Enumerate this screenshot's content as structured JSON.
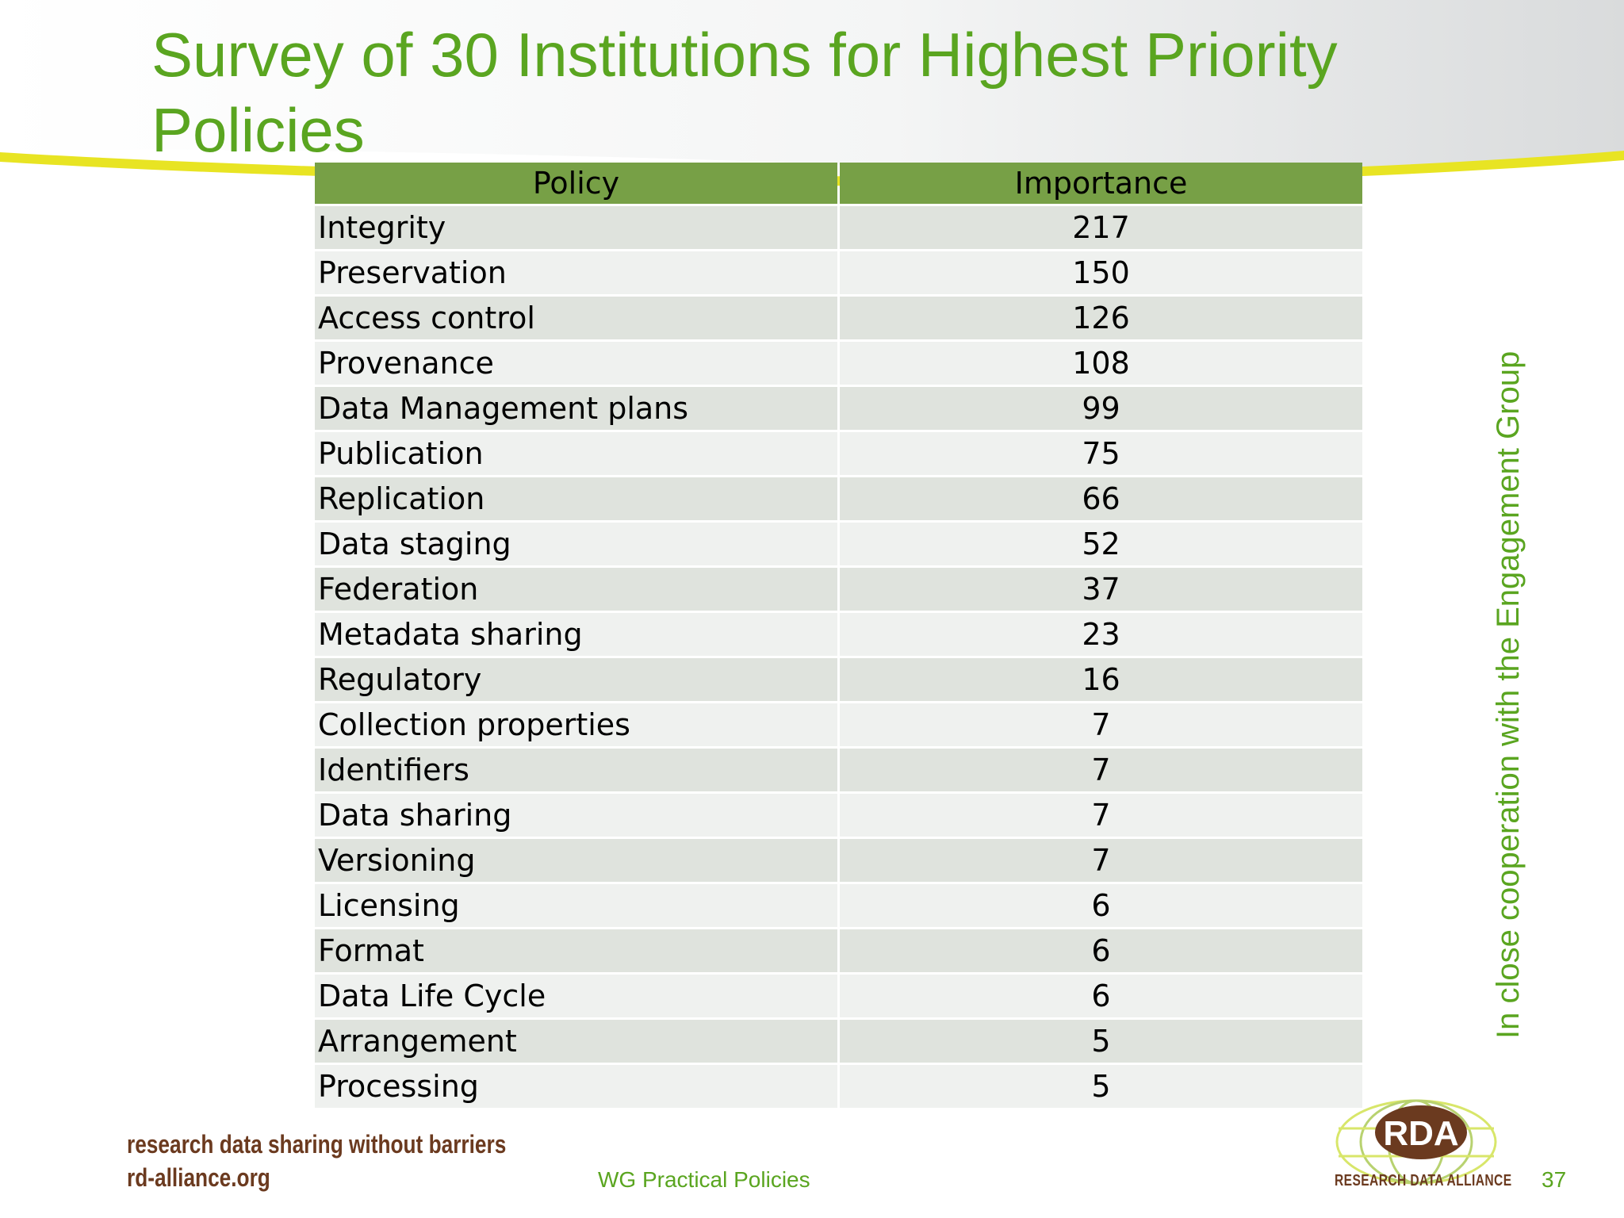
{
  "slide": {
    "title": "Survey of 30 Institutions for Highest Priority Policies",
    "side_note": "In close cooperation with the Engagement Group",
    "footer": {
      "tagline_line1": "research data sharing without barriers",
      "tagline_line2": "rd-alliance.org",
      "center_text": "WG Practical Policies",
      "page_number": "37",
      "logo_text": "RDA",
      "logo_label": "RESEARCH DATA ALLIANCE"
    },
    "colors": {
      "title_green": "#5aa520",
      "header_green": "#77a046",
      "row_dark": "#dfe3dd",
      "row_light": "#eff1ef",
      "brand_brown": "#6b3a1f",
      "swoosh_yellow": "#e8e423"
    }
  },
  "table": {
    "headers": [
      "Policy",
      "Importance"
    ],
    "rows": [
      {
        "policy": "Integrity",
        "importance": "217"
      },
      {
        "policy": "Preservation",
        "importance": "150"
      },
      {
        "policy": "Access control",
        "importance": "126"
      },
      {
        "policy": "Provenance",
        "importance": "108"
      },
      {
        "policy": "Data Management plans",
        "importance": "99"
      },
      {
        "policy": "Publication",
        "importance": "75"
      },
      {
        "policy": "Replication",
        "importance": "66"
      },
      {
        "policy": "Data staging",
        "importance": "52"
      },
      {
        "policy": "Federation",
        "importance": "37"
      },
      {
        "policy": "Metadata sharing",
        "importance": "23"
      },
      {
        "policy": "Regulatory",
        "importance": "16"
      },
      {
        "policy": "Collection properties",
        "importance": "7"
      },
      {
        "policy": "Identifiers",
        "importance": "7"
      },
      {
        "policy": "Data sharing",
        "importance": "7"
      },
      {
        "policy": "Versioning",
        "importance": "7"
      },
      {
        "policy": "Licensing",
        "importance": "6"
      },
      {
        "policy": "Format",
        "importance": "6"
      },
      {
        "policy": "Data Life Cycle",
        "importance": "6"
      },
      {
        "policy": "Arrangement",
        "importance": "5"
      },
      {
        "policy": "Processing",
        "importance": "5"
      }
    ]
  }
}
